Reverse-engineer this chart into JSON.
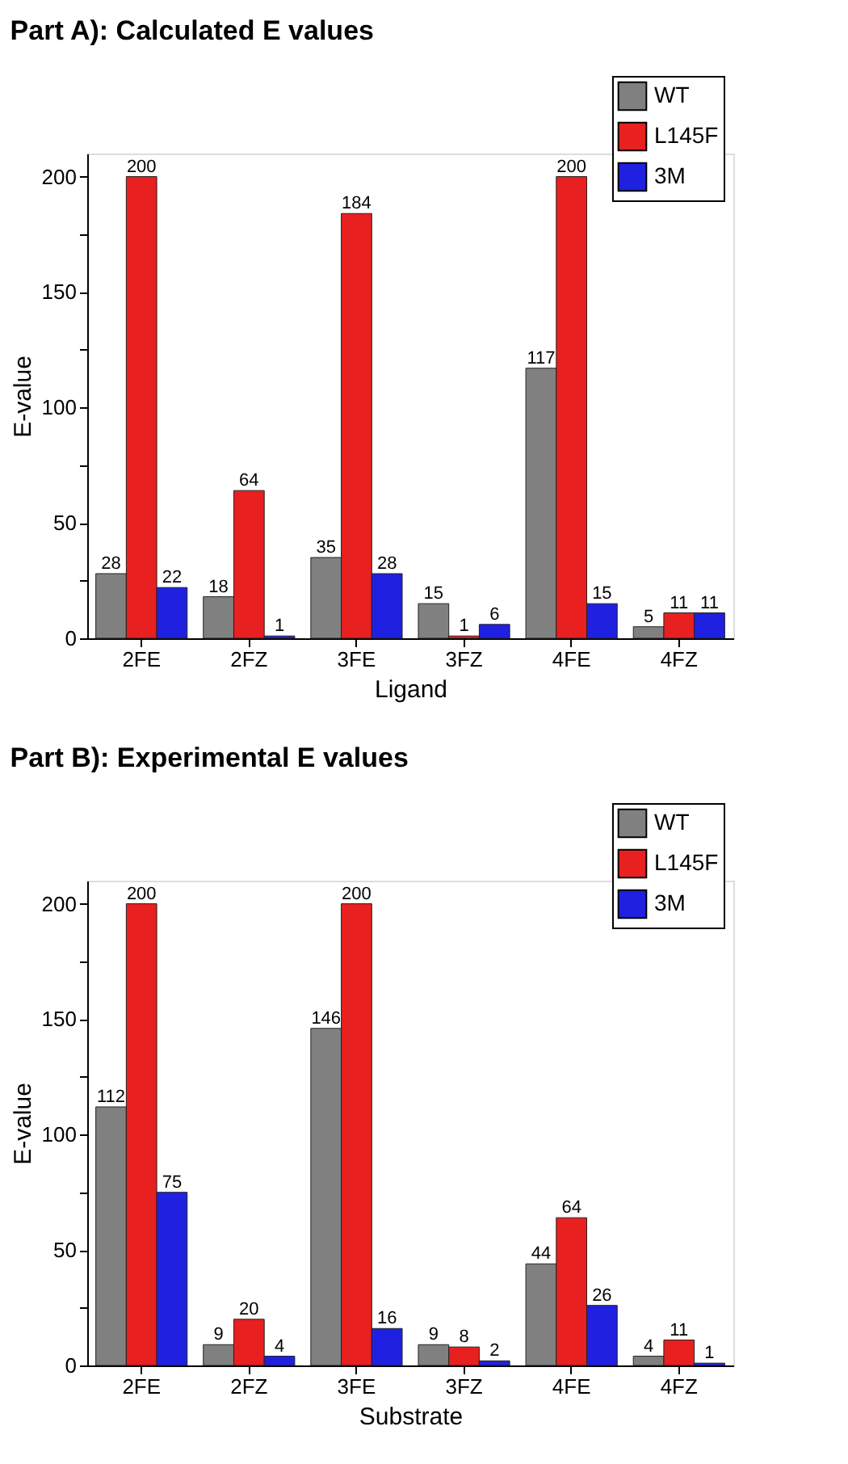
{
  "chart_data": [
    {
      "type": "bar",
      "title": "Part A): Calculated  E values",
      "xlabel": "Ligand",
      "ylabel": "E-value",
      "categories": [
        "2FE",
        "2FZ",
        "3FE",
        "3FZ",
        "4FE",
        "4FZ"
      ],
      "series": [
        {
          "name": "WT",
          "color": "#808080",
          "values": [
            28,
            18,
            35,
            15,
            117,
            5
          ]
        },
        {
          "name": "L145F",
          "color": "#e82020",
          "values": [
            200,
            64,
            184,
            1,
            200,
            11
          ]
        },
        {
          "name": "3M",
          "color": "#2020e0",
          "values": [
            22,
            1,
            28,
            6,
            15,
            11
          ]
        }
      ],
      "ylim": [
        0,
        210
      ],
      "yticks": [
        0,
        {
          "value": 25,
          "label": null
        },
        50,
        {
          "value": 75,
          "label": null
        },
        100,
        {
          "value": 125,
          "label": null
        },
        150,
        {
          "value": 175,
          "label": null
        },
        200
      ],
      "data_labels": true,
      "legend": "top right",
      "grid": false
    },
    {
      "type": "bar",
      "title": "Part B): Experimental  E values",
      "xlabel": "Substrate",
      "ylabel": "E-value",
      "categories": [
        "2FE",
        "2FZ",
        "3FE",
        "3FZ",
        "4FE",
        "4FZ"
      ],
      "series": [
        {
          "name": "WT",
          "color": "#808080",
          "values": [
            112,
            9,
            146,
            9,
            44,
            4
          ]
        },
        {
          "name": "L145F",
          "color": "#e82020",
          "values": [
            200,
            20,
            200,
            8,
            64,
            11
          ]
        },
        {
          "name": "3M",
          "color": "#2020e0",
          "values": [
            75,
            4,
            16,
            2,
            26,
            1
          ]
        }
      ],
      "ylim": [
        0,
        210
      ],
      "yticks": [
        0,
        {
          "value": 25,
          "label": null
        },
        50,
        {
          "value": 75,
          "label": null
        },
        100,
        {
          "value": 125,
          "label": null
        },
        150,
        {
          "value": 175,
          "label": null
        },
        200
      ],
      "data_labels": true,
      "legend": "top right",
      "grid": false
    }
  ]
}
